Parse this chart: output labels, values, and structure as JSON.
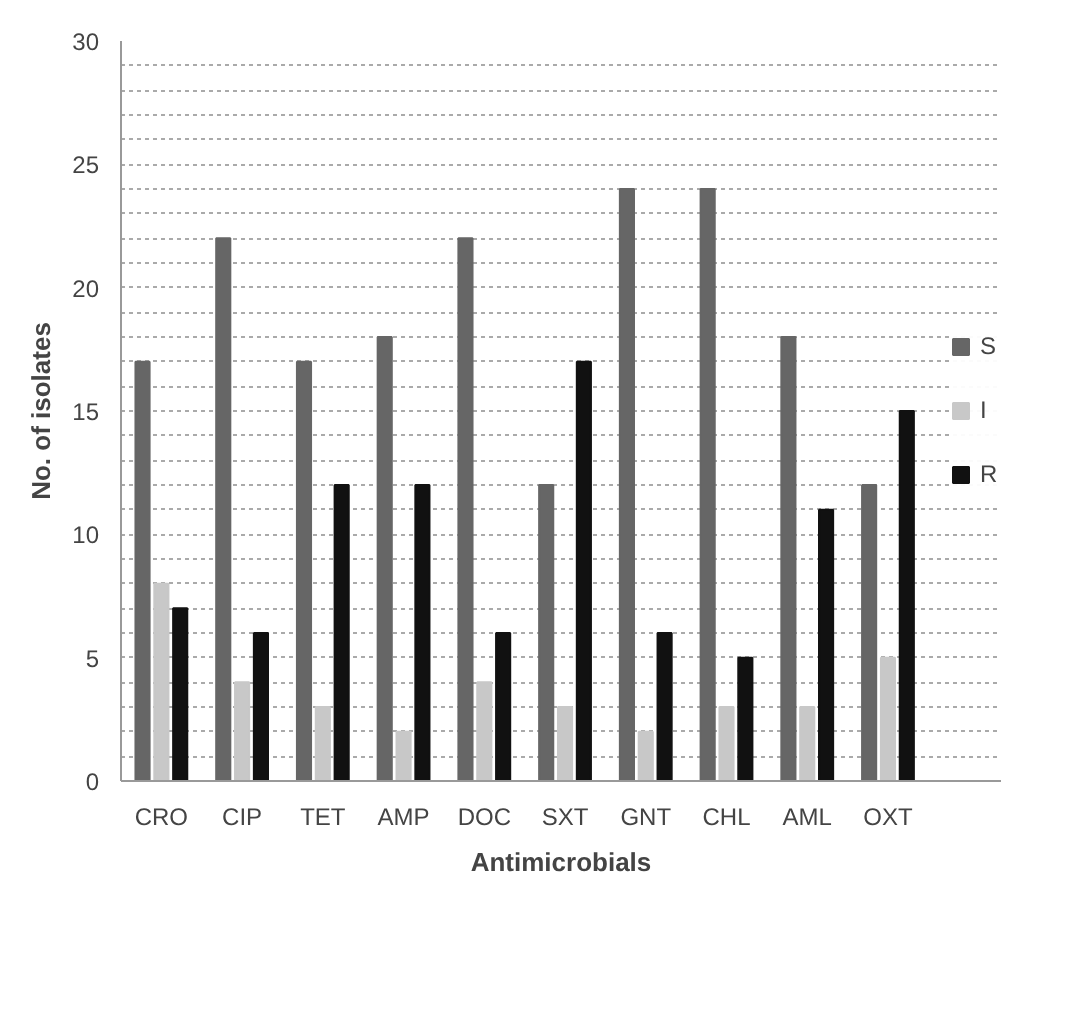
{
  "chart_data": {
    "type": "bar",
    "xlabel": "Antimicrobials",
    "ylabel": "No. of isolates",
    "categories": [
      "CRO",
      "CIP",
      "TET",
      "AMP",
      "DOC",
      "SXT",
      "GNT",
      "CHL",
      "AML",
      "OXT"
    ],
    "series": [
      {
        "name": "S",
        "color": "#666666",
        "values": [
          17,
          22,
          17,
          18,
          22,
          12,
          24,
          24,
          18,
          12
        ]
      },
      {
        "name": "I",
        "color": "#c8c8c8",
        "values": [
          8,
          4,
          3,
          2,
          4,
          3,
          2,
          3,
          3,
          5
        ]
      },
      {
        "name": "R",
        "color": "#111111",
        "values": [
          7,
          6,
          12,
          12,
          6,
          17,
          6,
          5,
          11,
          15
        ]
      }
    ],
    "ylim": [
      0,
      30
    ],
    "yticks": [
      0,
      {
        "value": 1,
        "label": null
      },
      {
        "value": 2,
        "label": null
      },
      {
        "value": 3,
        "label": null
      },
      {
        "value": 4,
        "label": null
      },
      5,
      {
        "value": 6,
        "label": null
      },
      {
        "value": 7,
        "label": null
      },
      {
        "value": 8,
        "label": null
      },
      {
        "value": 9,
        "label": null
      },
      10,
      {
        "value": 11,
        "label": null
      },
      {
        "value": 12,
        "label": null
      },
      {
        "value": 13,
        "label": null
      },
      {
        "value": 14,
        "label": null
      },
      15,
      {
        "value": 16,
        "label": null
      },
      {
        "value": 17,
        "label": null
      },
      {
        "value": 18,
        "label": null
      },
      {
        "value": 19,
        "label": null
      },
      20,
      {
        "value": 21,
        "label": null
      },
      {
        "value": 22,
        "label": null
      },
      {
        "value": 23,
        "label": null
      },
      {
        "value": 24,
        "label": null
      },
      25,
      {
        "value": 26,
        "label": null
      },
      {
        "value": 27,
        "label": null
      },
      {
        "value": 28,
        "label": null
      },
      {
        "value": 29,
        "label": null
      },
      30
    ],
    "grid": "y",
    "legend": "right"
  }
}
